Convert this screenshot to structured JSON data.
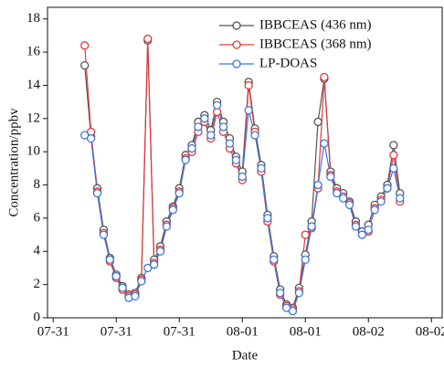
{
  "chart_data": {
    "type": "line",
    "x_label": "Date",
    "y_label": "Concentration/ppbv",
    "x": [
      5,
      6,
      7,
      8,
      9,
      10,
      11,
      12,
      13,
      14,
      15,
      16,
      17,
      18,
      19,
      20,
      21,
      22,
      23,
      24,
      25,
      26,
      27,
      28,
      29,
      30,
      31,
      32,
      33,
      34,
      35,
      36,
      37,
      38,
      39,
      40,
      41,
      42,
      43,
      44,
      45,
      46,
      47,
      48,
      49,
      50,
      51,
      52,
      53,
      54,
      55
    ],
    "series": [
      {
        "name": "IBBCEAS (436 nm)",
        "color": "#555555",
        "values": [
          15.2,
          10.9,
          7.8,
          5.3,
          3.6,
          2.6,
          1.9,
          1.4,
          1.5,
          2.4,
          16.7,
          3.5,
          4.3,
          5.8,
          6.7,
          7.8,
          9.8,
          10.4,
          11.8,
          12.2,
          11.3,
          13.0,
          11.8,
          10.8,
          9.7,
          8.8,
          14.2,
          11.4,
          9.2,
          6.2,
          3.7,
          1.7,
          0.8,
          0.6,
          1.8,
          3.8,
          5.8,
          11.8,
          14.4,
          8.8,
          7.8,
          7.5,
          7.0,
          5.8,
          5.2,
          5.6,
          6.8,
          7.3,
          8.0,
          10.4,
          7.5
        ]
      },
      {
        "name": "IBBCEAS (368 nm)",
        "color": "#e03a3a",
        "values": [
          16.4,
          11.2,
          7.6,
          5.1,
          3.4,
          2.4,
          1.7,
          1.3,
          1.4,
          2.3,
          16.8,
          3.3,
          4.1,
          5.6,
          6.6,
          7.6,
          9.6,
          10.0,
          11.2,
          11.8,
          10.8,
          12.4,
          11.2,
          10.2,
          9.3,
          8.3,
          14.0,
          11.2,
          8.8,
          5.8,
          3.4,
          1.4,
          0.7,
          0.5,
          1.6,
          5.0,
          5.4,
          7.8,
          14.5,
          8.6,
          7.6,
          7.3,
          6.9,
          5.6,
          5.0,
          5.2,
          6.6,
          7.1,
          7.8,
          9.8,
          7.0
        ]
      },
      {
        "name": "LP-DOAS",
        "color": "#3a78e0",
        "values": [
          11,
          10.8,
          7.5,
          5,
          3.5,
          2.5,
          1.8,
          1.2,
          1.3,
          2.2,
          3,
          3.2,
          4,
          5.5,
          6.5,
          7.5,
          9.5,
          10.2,
          11.5,
          12,
          11,
          12.8,
          11.5,
          10.5,
          9.5,
          8.5,
          12.5,
          11,
          9,
          6,
          3.5,
          1.5,
          0.6,
          0.4,
          1.5,
          3.5,
          5.5,
          8,
          10.5,
          8.5,
          7.5,
          7.2,
          6.8,
          5.5,
          5,
          5.3,
          6.5,
          7,
          7.8,
          9,
          7.2
        ]
      }
    ],
    "xlim": [
      -0.9,
      61.7
    ],
    "xticks": [
      {
        "value": 0,
        "label": "07-31"
      },
      {
        "value": 10,
        "label": "07-31"
      },
      {
        "value": 20,
        "label": "07-31"
      },
      {
        "value": 30,
        "label": "08-01"
      },
      {
        "value": 40,
        "label": "08-01"
      },
      {
        "value": 50,
        "label": "08-02"
      },
      {
        "value": 60,
        "label": "08-02"
      }
    ],
    "ylim": [
      0,
      18.7
    ],
    "yticks": [
      0,
      2,
      4,
      6,
      8,
      10,
      12,
      14,
      16,
      18
    ],
    "legend": "upper right"
  }
}
